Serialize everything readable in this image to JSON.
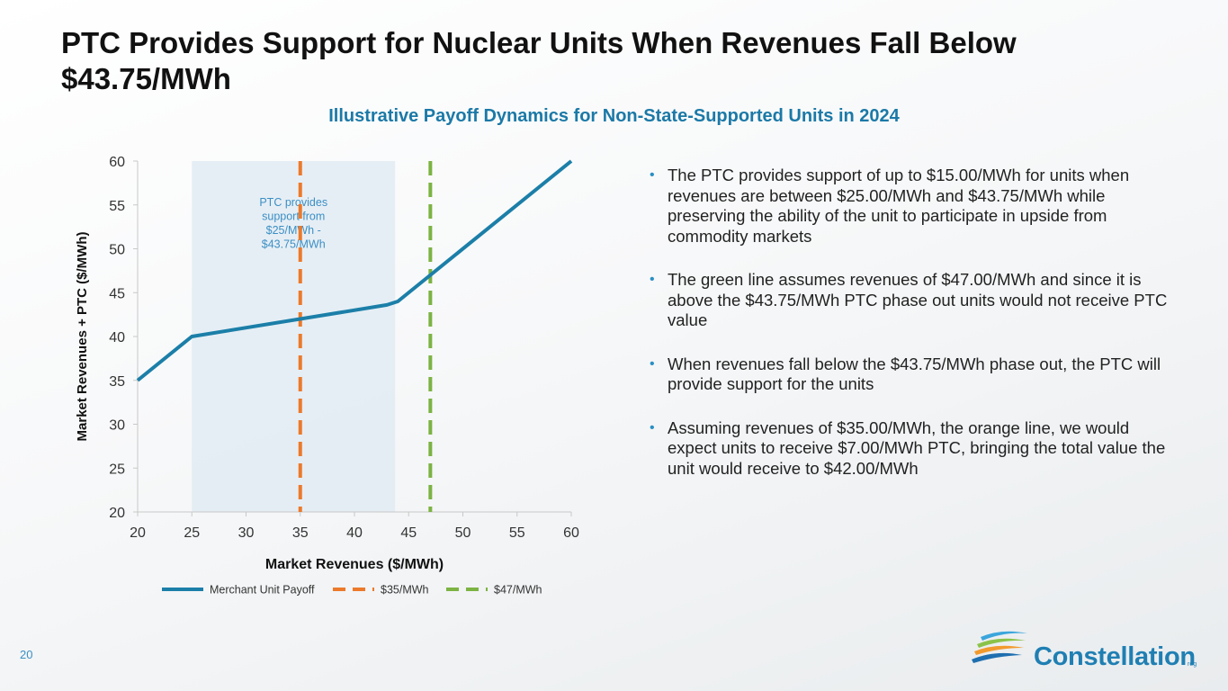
{
  "slide": {
    "title": "PTC Provides Support for Nuclear Units When Revenues Fall Below $43.75/MWh",
    "subtitle": "Illustrative Payoff Dynamics for Non-State-Supported Units in 2024",
    "page_number": "20",
    "bullets": [
      "The PTC provides support of up to $15.00/MWh for units when revenues are between $25.00/MWh and $43.75/MWh while preserving the ability of the unit to participate in upside from commodity markets",
      "The green line assumes revenues of $47.00/MWh and since it is above the $43.75/MWh PTC phase out units would not receive PTC value",
      "When revenues fall below the $43.75/MWh phase out, the PTC will provide support for the units",
      "Assuming revenues of $35.00/MWh, the orange line, we would expect units to receive $7.00/MWh PTC, bringing the total value the unit would receive to $42.00/MWh"
    ],
    "logo": {
      "text": "Constellation",
      "mark": "reg",
      "icon": "constellation-logo-icon"
    }
  },
  "chart_data": {
    "type": "line",
    "title": "",
    "xlabel": "Market Revenues ($/MWh)",
    "ylabel": "Market Revenues + PTC ($/MWh)",
    "xlim": [
      20,
      60
    ],
    "ylim": [
      20,
      60
    ],
    "xticks": [
      20,
      25,
      30,
      35,
      40,
      45,
      50,
      55,
      60
    ],
    "yticks": [
      20,
      25,
      30,
      35,
      40,
      45,
      50,
      55,
      60
    ],
    "grid": false,
    "legend_position": "bottom",
    "shaded_region": {
      "x_from": 25,
      "x_to": 43.75,
      "label": [
        "PTC provides",
        "support from",
        "$25/MWh -",
        "$43.75/MWh"
      ],
      "color": "#dfe9f3"
    },
    "series": [
      {
        "name": "Merchant Unit Payoff",
        "style": "solid",
        "color": "#1b7fa8",
        "x": [
          20,
          25,
          43,
          44,
          60
        ],
        "y": [
          35,
          40,
          43.6,
          44,
          60
        ]
      },
      {
        "name": "$35/MWh",
        "style": "dashed",
        "color": "#ec7a2a",
        "x_value": 35
      },
      {
        "name": "$47/MWh",
        "style": "dashed",
        "color": "#7cb342",
        "x_value": 47
      }
    ]
  }
}
